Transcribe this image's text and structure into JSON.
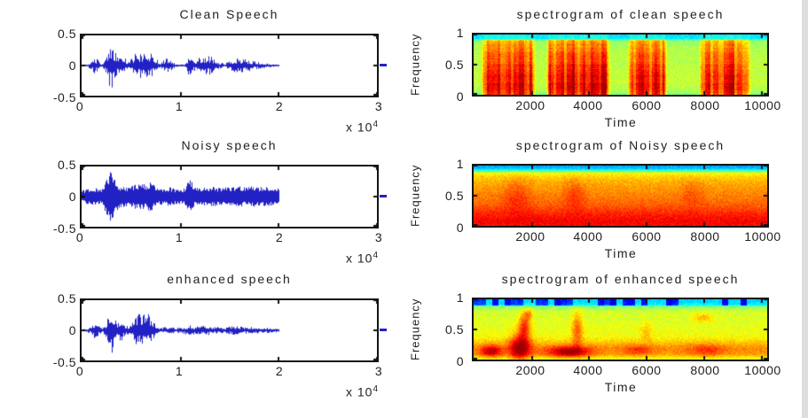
{
  "figure": {
    "background": "#ffffff",
    "waveform_color": "#2222c4",
    "axis_color": "#141414",
    "text_color": "#222222"
  },
  "panels": [
    {
      "id": "clean-wave",
      "title": "Clean Speech",
      "yticks": [
        "0.5",
        "0",
        "-0.5"
      ],
      "xticks": [
        "0",
        "1",
        "2",
        "3"
      ],
      "exp_prefix": "x 10",
      "exp_power": "4"
    },
    {
      "id": "spec-clean",
      "title": "spectrogram of clean speech",
      "ylabel": "Frequency",
      "yticks": [
        "1",
        "0.5",
        "0"
      ],
      "xticks": [
        "2000",
        "4000",
        "6000",
        "8000",
        "10000"
      ],
      "xlabel": "Time"
    },
    {
      "id": "noisy-wave",
      "title": "Noisy speech",
      "yticks": [
        "0.5",
        "0",
        "-0.5"
      ],
      "xticks": [
        "0",
        "1",
        "2",
        "3"
      ],
      "exp_prefix": "x 10",
      "exp_power": "4"
    },
    {
      "id": "spec-noisy",
      "title": "spectrogram of Noisy speech",
      "ylabel": "Frequency",
      "yticks": [
        "1",
        "0.5",
        "0"
      ],
      "xticks": [
        "2000",
        "4000",
        "6000",
        "8000",
        "10000"
      ],
      "xlabel": "Time"
    },
    {
      "id": "enh-wave",
      "title": "enhanced speech",
      "yticks": [
        "0.5",
        "0",
        "-0.5"
      ],
      "xticks": [
        "0",
        "1",
        "2",
        "3"
      ],
      "exp_prefix": "x 10",
      "exp_power": "4"
    },
    {
      "id": "spec-enh",
      "title": "spectrogram of enhanced speech",
      "ylabel": "Frequency",
      "yticks": [
        "1",
        "0.5",
        "0"
      ],
      "xticks": [
        "2000",
        "4000",
        "6000",
        "8000",
        "10000"
      ],
      "xlabel": "Time"
    }
  ],
  "chart_data": [
    {
      "id": "clean-wave",
      "type": "line",
      "title": "Clean Speech",
      "xlim": [
        0,
        30000
      ],
      "ylim": [
        -0.5,
        0.5
      ],
      "xticks": [
        0,
        10000,
        20000,
        30000
      ],
      "yticks": [
        -0.5,
        0,
        0.5
      ],
      "x_scale_label": "x 10^4",
      "color": "#2222c4",
      "signal_end_x": 20000,
      "seed": 5,
      "fill": 0.28,
      "spread": 1.7,
      "envelope": [
        [
          0,
          0.015
        ],
        [
          500,
          0.02
        ],
        [
          800,
          0.05
        ],
        [
          1200,
          0.13
        ],
        [
          1600,
          0.1
        ],
        [
          2000,
          0.04
        ],
        [
          2400,
          0.08
        ],
        [
          2700,
          0.3
        ],
        [
          3000,
          0.42
        ],
        [
          3300,
          0.28
        ],
        [
          3600,
          0.18
        ],
        [
          4000,
          0.22
        ],
        [
          4400,
          0.12
        ],
        [
          4800,
          0.06
        ],
        [
          5200,
          0.15
        ],
        [
          5600,
          0.22
        ],
        [
          6000,
          0.2
        ],
        [
          6400,
          0.26
        ],
        [
          6800,
          0.24
        ],
        [
          7200,
          0.16
        ],
        [
          7600,
          0.1
        ],
        [
          8000,
          0.05
        ],
        [
          8400,
          0.1
        ],
        [
          8800,
          0.14
        ],
        [
          9200,
          0.06
        ],
        [
          9600,
          0.02
        ],
        [
          10500,
          0.02
        ],
        [
          11000,
          0.2
        ],
        [
          11300,
          0.08
        ],
        [
          11800,
          0.12
        ],
        [
          12200,
          0.14
        ],
        [
          12700,
          0.16
        ],
        [
          13200,
          0.14
        ],
        [
          13800,
          0.06
        ],
        [
          14500,
          0.03
        ],
        [
          15500,
          0.1
        ],
        [
          16000,
          0.13
        ],
        [
          16800,
          0.1
        ],
        [
          17500,
          0.07
        ],
        [
          18500,
          0.04
        ],
        [
          19500,
          0.02
        ],
        [
          20000,
          0.012
        ]
      ]
    },
    {
      "id": "spec-clean",
      "type": "heatmap",
      "title": "spectrogram of clean speech",
      "xlabel": "Time",
      "ylabel": "Frequency",
      "xlim": [
        0,
        10200
      ],
      "ylim": [
        0,
        1
      ],
      "xticks": [
        2000,
        4000,
        6000,
        8000,
        10000
      ],
      "yticks": [
        0,
        0.5,
        1
      ],
      "colormap": "jet",
      "seed": 11,
      "noise": 0.045,
      "profile": [
        [
          0,
          0.34
        ],
        [
          0.06,
          0.36
        ],
        [
          0.1,
          0.52
        ],
        [
          0.25,
          0.55
        ],
        [
          0.55,
          0.56
        ],
        [
          0.8,
          0.57
        ],
        [
          0.93,
          0.55
        ],
        [
          1,
          0.5
        ]
      ],
      "segments": [
        [
          250,
          2150,
          0.34
        ],
        [
          2500,
          4750,
          0.34
        ],
        [
          5350,
          6750,
          0.3
        ],
        [
          7850,
          9650,
          0.32
        ]
      ],
      "blobs": []
    },
    {
      "id": "noisy-wave",
      "type": "line",
      "title": "Noisy speech",
      "xlim": [
        0,
        30000
      ],
      "ylim": [
        -0.5,
        0.5
      ],
      "xticks": [
        0,
        10000,
        20000,
        30000
      ],
      "yticks": [
        -0.5,
        0,
        0.5
      ],
      "x_scale_label": "x 10^4",
      "color": "#2222c4",
      "signal_end_x": 20000,
      "seed": 6,
      "fill": 0.55,
      "spread": 1.2,
      "envelope": [
        [
          0,
          0.1
        ],
        [
          500,
          0.12
        ],
        [
          1000,
          0.13
        ],
        [
          1500,
          0.14
        ],
        [
          2000,
          0.12
        ],
        [
          2500,
          0.28
        ],
        [
          3000,
          0.45
        ],
        [
          3300,
          0.3
        ],
        [
          3800,
          0.18
        ],
        [
          4500,
          0.16
        ],
        [
          5000,
          0.17
        ],
        [
          5500,
          0.2
        ],
        [
          6000,
          0.22
        ],
        [
          6500,
          0.2
        ],
        [
          7000,
          0.24
        ],
        [
          7500,
          0.16
        ],
        [
          8000,
          0.13
        ],
        [
          8500,
          0.14
        ],
        [
          9000,
          0.15
        ],
        [
          9500,
          0.13
        ],
        [
          10000,
          0.12
        ],
        [
          10500,
          0.14
        ],
        [
          11000,
          0.3
        ],
        [
          11500,
          0.15
        ],
        [
          12000,
          0.14
        ],
        [
          12500,
          0.16
        ],
        [
          13000,
          0.15
        ],
        [
          13500,
          0.16
        ],
        [
          14000,
          0.14
        ],
        [
          14500,
          0.15
        ],
        [
          15000,
          0.16
        ],
        [
          15500,
          0.15
        ],
        [
          16000,
          0.17
        ],
        [
          16500,
          0.15
        ],
        [
          17000,
          0.16
        ],
        [
          17500,
          0.17
        ],
        [
          18000,
          0.15
        ],
        [
          18500,
          0.16
        ],
        [
          19000,
          0.15
        ],
        [
          19500,
          0.14
        ],
        [
          20000,
          0.13
        ]
      ]
    },
    {
      "id": "spec-noisy",
      "type": "heatmap",
      "title": "spectrogram of Noisy speech",
      "xlabel": "Time",
      "ylabel": "Frequency",
      "xlim": [
        0,
        10200
      ],
      "ylim": [
        0,
        1
      ],
      "xticks": [
        2000,
        4000,
        6000,
        8000,
        10000
      ],
      "yticks": [
        0,
        0.5,
        1
      ],
      "colormap": "jet",
      "seed": 12,
      "noise": 0.04,
      "profile": [
        [
          0,
          0.28
        ],
        [
          0.05,
          0.33
        ],
        [
          0.09,
          0.5
        ],
        [
          0.12,
          0.62
        ],
        [
          0.17,
          0.66
        ],
        [
          0.26,
          0.7
        ],
        [
          0.45,
          0.74
        ],
        [
          0.65,
          0.78
        ],
        [
          0.8,
          0.84
        ],
        [
          0.92,
          0.88
        ],
        [
          1,
          0.87
        ]
      ],
      "segments": [],
      "blobs": [
        [
          1500,
          0.5,
          450,
          0.28,
          0.07
        ],
        [
          3500,
          0.48,
          350,
          0.26,
          0.07
        ],
        [
          7600,
          0.45,
          350,
          0.22,
          0.05
        ]
      ]
    },
    {
      "id": "enh-wave",
      "type": "line",
      "title": "enhanced speech",
      "xlim": [
        0,
        30000
      ],
      "ylim": [
        -0.5,
        0.5
      ],
      "xticks": [
        0,
        10000,
        20000,
        30000
      ],
      "yticks": [
        -0.5,
        0,
        0.5
      ],
      "x_scale_label": "x 10^4",
      "color": "#2222c4",
      "signal_end_x": 20000,
      "seed": 7,
      "fill": 0.3,
      "spread": 1.6,
      "envelope": [
        [
          0,
          0.02
        ],
        [
          500,
          0.03
        ],
        [
          800,
          0.05
        ],
        [
          1200,
          0.13
        ],
        [
          1600,
          0.1
        ],
        [
          2000,
          0.05
        ],
        [
          2400,
          0.08
        ],
        [
          2700,
          0.28
        ],
        [
          3000,
          0.4
        ],
        [
          3300,
          0.25
        ],
        [
          3600,
          0.15
        ],
        [
          4000,
          0.18
        ],
        [
          4400,
          0.1
        ],
        [
          4800,
          0.06
        ],
        [
          5200,
          0.14
        ],
        [
          5600,
          0.25
        ],
        [
          6000,
          0.28
        ],
        [
          6400,
          0.3
        ],
        [
          6800,
          0.26
        ],
        [
          7200,
          0.18
        ],
        [
          7600,
          0.08
        ],
        [
          8000,
          0.04
        ],
        [
          8500,
          0.05
        ],
        [
          9000,
          0.06
        ],
        [
          9500,
          0.04
        ],
        [
          10000,
          0.05
        ],
        [
          10500,
          0.06
        ],
        [
          11000,
          0.09
        ],
        [
          11500,
          0.06
        ],
        [
          12000,
          0.07
        ],
        [
          12500,
          0.08
        ],
        [
          13000,
          0.08
        ],
        [
          13500,
          0.06
        ],
        [
          14000,
          0.05
        ],
        [
          14500,
          0.04
        ],
        [
          15000,
          0.06
        ],
        [
          15500,
          0.07
        ],
        [
          16000,
          0.06
        ],
        [
          16500,
          0.06
        ],
        [
          17000,
          0.05
        ],
        [
          17500,
          0.06
        ],
        [
          18000,
          0.05
        ],
        [
          18500,
          0.05
        ],
        [
          19000,
          0.04
        ],
        [
          19500,
          0.04
        ],
        [
          20000,
          0.03
        ]
      ]
    },
    {
      "id": "spec-enh",
      "type": "heatmap",
      "title": "spectrogram of enhanced speech",
      "xlabel": "Time",
      "ylabel": "Frequency",
      "xlim": [
        0,
        10200
      ],
      "ylim": [
        0,
        1
      ],
      "xticks": [
        2000,
        4000,
        6000,
        8000,
        10000
      ],
      "yticks": [
        0,
        0.5,
        1
      ],
      "colormap": "jet",
      "seed": 13,
      "noise": 0.042,
      "top_patches": true,
      "profile": [
        [
          0,
          0.33
        ],
        [
          0.08,
          0.36
        ],
        [
          0.12,
          0.52
        ],
        [
          0.2,
          0.58
        ],
        [
          0.45,
          0.6
        ],
        [
          0.62,
          0.62
        ],
        [
          0.72,
          0.68
        ],
        [
          0.82,
          0.74
        ],
        [
          0.92,
          0.72
        ],
        [
          1,
          0.6
        ]
      ],
      "segments": [],
      "blobs": [
        [
          600,
          0.87,
          350,
          0.1,
          0.22
        ],
        [
          1600,
          0.8,
          350,
          0.22,
          0.3
        ],
        [
          1750,
          0.45,
          200,
          0.22,
          0.22
        ],
        [
          1900,
          0.25,
          150,
          0.1,
          0.12
        ],
        [
          3300,
          0.88,
          700,
          0.09,
          0.26
        ],
        [
          3600,
          0.5,
          180,
          0.28,
          0.18
        ],
        [
          5700,
          0.85,
          500,
          0.08,
          0.1
        ],
        [
          6000,
          0.55,
          200,
          0.15,
          0.08
        ],
        [
          8000,
          0.3,
          350,
          0.08,
          0.1
        ],
        [
          8100,
          0.85,
          600,
          0.1,
          0.1
        ]
      ]
    }
  ]
}
